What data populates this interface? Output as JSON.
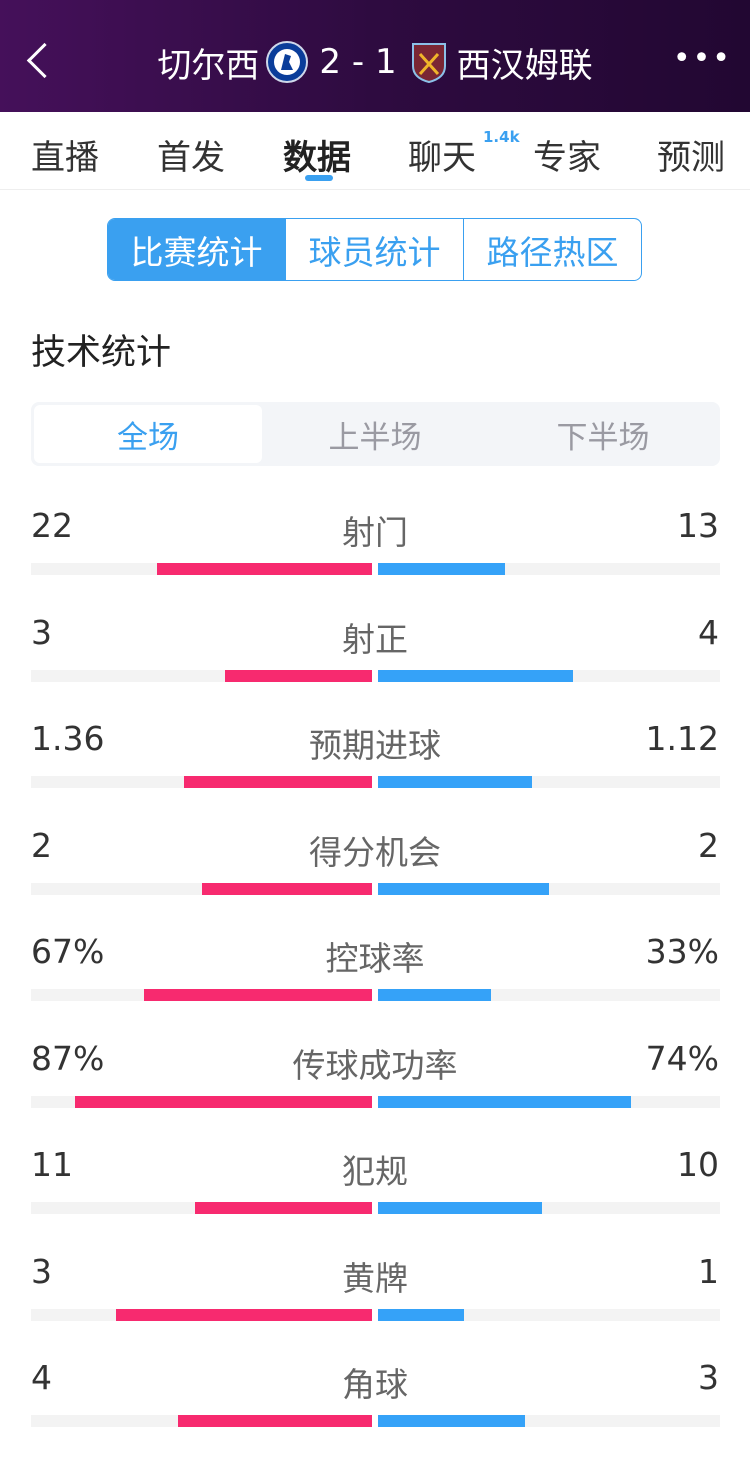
{
  "header": {
    "home": "切尔西",
    "score": "2 - 1",
    "away": "西汉姆联",
    "home_crest": "chelsea-crest",
    "away_crest": "west-ham-crest",
    "more": "•••"
  },
  "tabs": [
    {
      "label": "直播"
    },
    {
      "label": "首发"
    },
    {
      "label": "数据",
      "active": true
    },
    {
      "label": "聊天",
      "badge": "1.4k"
    },
    {
      "label": "专家"
    },
    {
      "label": "预测"
    }
  ],
  "segments": [
    "比赛统计",
    "球员统计",
    "路径热区"
  ],
  "section_title": "技术统计",
  "periods": [
    "全场",
    "上半场",
    "下半场"
  ],
  "colors": {
    "home": "#f72a6f",
    "away": "#35a2f8",
    "accent": "#3aa0f0"
  },
  "stats": [
    {
      "label": "射门",
      "home": "22",
      "away": "13",
      "home_fill": 0.63,
      "away_fill": 0.37
    },
    {
      "label": "射正",
      "home": "3",
      "away": "4",
      "home_fill": 0.43,
      "away_fill": 0.57
    },
    {
      "label": "预期进球",
      "home": "1.36",
      "away": "1.12",
      "home_fill": 0.55,
      "away_fill": 0.45
    },
    {
      "label": "得分机会",
      "home": "2",
      "away": "2",
      "home_fill": 0.5,
      "away_fill": 0.5
    },
    {
      "label": "控球率",
      "home": "67%",
      "away": "33%",
      "home_fill": 0.67,
      "away_fill": 0.33
    },
    {
      "label": "传球成功率",
      "home": "87%",
      "away": "74%",
      "home_fill": 0.87,
      "away_fill": 0.74
    },
    {
      "label": "犯规",
      "home": "11",
      "away": "10",
      "home_fill": 0.52,
      "away_fill": 0.48
    },
    {
      "label": "黄牌",
      "home": "3",
      "away": "1",
      "home_fill": 0.75,
      "away_fill": 0.25
    },
    {
      "label": "角球",
      "home": "4",
      "away": "3",
      "home_fill": 0.57,
      "away_fill": 0.43
    }
  ]
}
